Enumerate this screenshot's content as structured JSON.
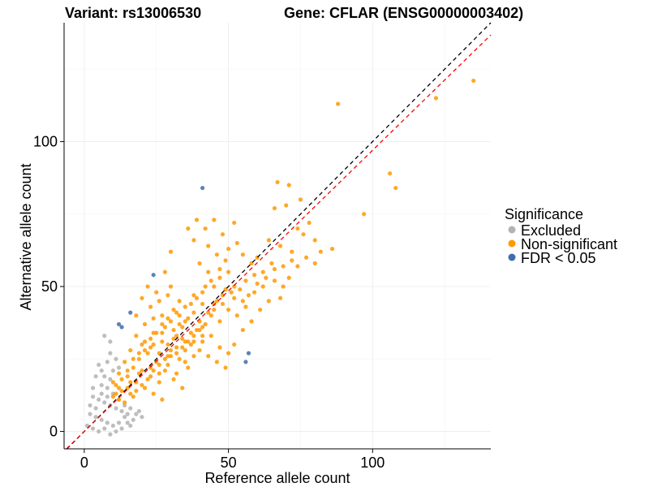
{
  "chart_data": {
    "type": "scatter",
    "title_left": "Variant: rs13006530",
    "title_right": "Gene: CFLAR (ENSG00000003402)",
    "xlabel": "Reference allele count",
    "ylabel": "Alternative allele count",
    "xlim": [
      -7,
      141
    ],
    "ylim": [
      -6,
      141
    ],
    "xticks": [
      0,
      50,
      100
    ],
    "yticks": [
      0,
      50,
      100
    ],
    "grid": true,
    "legend": {
      "title": "Significance",
      "position": "right",
      "entries": [
        {
          "label": "Excluded",
          "color": "#b3b3b3"
        },
        {
          "label": "Non-significant",
          "color": "#ff9900"
        },
        {
          "label": "FDR < 0.05",
          "color": "#3f6fa8"
        }
      ]
    },
    "reference_lines": [
      {
        "name": "identity",
        "slope": 1,
        "intercept": 0,
        "color": "#000000",
        "style": "dashed"
      },
      {
        "name": "fit",
        "slope": 0.97,
        "intercept": 0,
        "color": "#ff0000",
        "style": "dashed"
      }
    ],
    "series": [
      {
        "name": "Excluded",
        "color": "#b3b3b3",
        "points": [
          [
            7,
            33
          ],
          [
            9,
            31
          ],
          [
            5,
            23
          ],
          [
            8,
            24
          ],
          [
            4,
            19
          ],
          [
            7,
            19
          ],
          [
            9,
            18
          ],
          [
            10,
            21
          ],
          [
            12,
            22
          ],
          [
            6,
            16
          ],
          [
            8,
            15
          ],
          [
            3,
            12
          ],
          [
            5,
            11
          ],
          [
            7,
            10
          ],
          [
            9,
            9
          ],
          [
            11,
            8
          ],
          [
            13,
            7
          ],
          [
            2,
            6
          ],
          [
            4,
            5
          ],
          [
            6,
            4
          ],
          [
            8,
            3
          ],
          [
            10,
            2
          ],
          [
            12,
            3
          ],
          [
            14,
            5
          ],
          [
            15,
            6
          ],
          [
            16,
            8
          ],
          [
            14,
            9
          ],
          [
            1,
            2
          ],
          [
            3,
            1
          ],
          [
            5,
            0
          ],
          [
            7,
            1
          ],
          [
            9,
            -1
          ],
          [
            11,
            0
          ],
          [
            13,
            1
          ],
          [
            15,
            3
          ],
          [
            17,
            4
          ],
          [
            18,
            6
          ],
          [
            6,
            13
          ],
          [
            8,
            12
          ],
          [
            10,
            13
          ],
          [
            4,
            8
          ],
          [
            2,
            9
          ],
          [
            12,
            11
          ],
          [
            16,
            2
          ],
          [
            19,
            7
          ],
          [
            20,
            5
          ],
          [
            3,
            15
          ],
          [
            6,
            21
          ],
          [
            9,
            27
          ],
          [
            11,
            25
          ]
        ]
      },
      {
        "name": "Non-significant",
        "color": "#ff9900",
        "points": [
          [
            135,
            121
          ],
          [
            122,
            115
          ],
          [
            88,
            113
          ],
          [
            106,
            89
          ],
          [
            108,
            84
          ],
          [
            97,
            75
          ],
          [
            86,
            63
          ],
          [
            67,
            86
          ],
          [
            71,
            85
          ],
          [
            75,
            80
          ],
          [
            70,
            78
          ],
          [
            66,
            77
          ],
          [
            74,
            70
          ],
          [
            78,
            72
          ],
          [
            80,
            66
          ],
          [
            76,
            68
          ],
          [
            72,
            62
          ],
          [
            68,
            64
          ],
          [
            64,
            66
          ],
          [
            60,
            60
          ],
          [
            58,
            58
          ],
          [
            55,
            61
          ],
          [
            62,
            55
          ],
          [
            66,
            52
          ],
          [
            69,
            50
          ],
          [
            59,
            48
          ],
          [
            55,
            45
          ],
          [
            52,
            50
          ],
          [
            50,
            42
          ],
          [
            48,
            47
          ],
          [
            45,
            44
          ],
          [
            42,
            50
          ],
          [
            40,
            58
          ],
          [
            38,
            66
          ],
          [
            42,
            70
          ],
          [
            45,
            73
          ],
          [
            48,
            68
          ],
          [
            52,
            72
          ],
          [
            50,
            55
          ],
          [
            47,
            38
          ],
          [
            44,
            40
          ],
          [
            41,
            36
          ],
          [
            38,
            41
          ],
          [
            35,
            38
          ],
          [
            33,
            45
          ],
          [
            30,
            50
          ],
          [
            28,
            55
          ],
          [
            25,
            48
          ],
          [
            23,
            43
          ],
          [
            27,
            40
          ],
          [
            31,
            35
          ],
          [
            34,
            32
          ],
          [
            37,
            30
          ],
          [
            40,
            28
          ],
          [
            43,
            26
          ],
          [
            46,
            24
          ],
          [
            49,
            22
          ],
          [
            52,
            30
          ],
          [
            55,
            35
          ],
          [
            58,
            38
          ],
          [
            61,
            42
          ],
          [
            64,
            45
          ],
          [
            36,
            22
          ],
          [
            33,
            25
          ],
          [
            30,
            28
          ],
          [
            27,
            31
          ],
          [
            24,
            34
          ],
          [
            21,
            37
          ],
          [
            18,
            40
          ],
          [
            20,
            30
          ],
          [
            22,
            27
          ],
          [
            25,
            24
          ],
          [
            28,
            21
          ],
          [
            31,
            18
          ],
          [
            34,
            15
          ],
          [
            19,
            25
          ],
          [
            16,
            28
          ],
          [
            14,
            24
          ],
          [
            12,
            20
          ],
          [
            15,
            19
          ],
          [
            18,
            17
          ],
          [
            21,
            15
          ],
          [
            24,
            13
          ],
          [
            27,
            11
          ],
          [
            17,
            12
          ],
          [
            13,
            14
          ],
          [
            11,
            16
          ],
          [
            10,
            12
          ],
          [
            12,
            11
          ],
          [
            14,
            10
          ],
          [
            16,
            13
          ],
          [
            19,
            20
          ],
          [
            23,
            19
          ],
          [
            26,
            17
          ],
          [
            29,
            23
          ],
          [
            32,
            20
          ],
          [
            35,
            24
          ],
          [
            38,
            26
          ],
          [
            41,
            31
          ],
          [
            44,
            33
          ],
          [
            47,
            29
          ],
          [
            50,
            27
          ],
          [
            53,
            40
          ],
          [
            56,
            52
          ],
          [
            59,
            54
          ],
          [
            62,
            50
          ],
          [
            65,
            58
          ],
          [
            68,
            46
          ],
          [
            71,
            53
          ],
          [
            74,
            57
          ],
          [
            77,
            60
          ],
          [
            80,
            58
          ],
          [
            82,
            62
          ],
          [
            26,
            45
          ],
          [
            29,
            47
          ],
          [
            32,
            41
          ],
          [
            35,
            43
          ],
          [
            38,
            47
          ],
          [
            41,
            44
          ],
          [
            44,
            52
          ],
          [
            47,
            56
          ],
          [
            50,
            63
          ],
          [
            53,
            65
          ],
          [
            30,
            62
          ],
          [
            36,
            70
          ],
          [
            39,
            73
          ],
          [
            43,
            64
          ],
          [
            46,
            61
          ],
          [
            49,
            59
          ],
          [
            22,
            50
          ],
          [
            20,
            46
          ],
          [
            24,
            39
          ],
          [
            28,
            36
          ],
          [
            31,
            32
          ],
          [
            34,
            36
          ],
          [
            37,
            34
          ],
          [
            40,
            38
          ],
          [
            43,
            41
          ],
          [
            46,
            45
          ],
          [
            49,
            49
          ],
          [
            52,
            46
          ],
          [
            56,
            43
          ],
          [
            23,
            29
          ],
          [
            26,
            27
          ],
          [
            29,
            26
          ],
          [
            32,
            29
          ],
          [
            35,
            28
          ],
          [
            38,
            31
          ],
          [
            41,
            33
          ],
          [
            17,
            22
          ],
          [
            20,
            21
          ],
          [
            23,
            22
          ],
          [
            26,
            20
          ],
          [
            29,
            30
          ],
          [
            32,
            33
          ],
          [
            35,
            31
          ],
          [
            18,
            33
          ],
          [
            21,
            31
          ],
          [
            24,
            30
          ],
          [
            27,
            34
          ],
          [
            30,
            38
          ],
          [
            33,
            37
          ],
          [
            36,
            39
          ],
          [
            39,
            35
          ],
          [
            42,
            37
          ],
          [
            45,
            42
          ],
          [
            48,
            44
          ],
          [
            51,
            48
          ],
          [
            54,
            49
          ],
          [
            57,
            47
          ],
          [
            60,
            51
          ],
          [
            63,
            53
          ],
          [
            66,
            56
          ],
          [
            69,
            57
          ],
          [
            72,
            59
          ],
          [
            15,
            15
          ],
          [
            16,
            17
          ],
          [
            18,
            14
          ],
          [
            20,
            16
          ],
          [
            22,
            18
          ],
          [
            24,
            21
          ],
          [
            26,
            23
          ],
          [
            28,
            25
          ],
          [
            30,
            26
          ],
          [
            32,
            27
          ],
          [
            34,
            29
          ],
          [
            36,
            31
          ],
          [
            38,
            33
          ],
          [
            40,
            35
          ],
          [
            13,
            18
          ],
          [
            11,
            13
          ],
          [
            10,
            17
          ],
          [
            12,
            15
          ],
          [
            15,
            21
          ],
          [
            17,
            25
          ],
          [
            19,
            27
          ],
          [
            21,
            28
          ],
          [
            23,
            32
          ],
          [
            25,
            34
          ],
          [
            27,
            37
          ],
          [
            29,
            39
          ],
          [
            31,
            42
          ],
          [
            33,
            40
          ],
          [
            37,
            44
          ],
          [
            39,
            46
          ],
          [
            41,
            48
          ],
          [
            43,
            55
          ],
          [
            45,
            50
          ],
          [
            47,
            53
          ]
        ]
      },
      {
        "name": "FDR < 0.05",
        "color": "#3f6fa8",
        "points": [
          [
            41,
            84
          ],
          [
            24,
            54
          ],
          [
            16,
            41
          ],
          [
            12,
            37
          ],
          [
            13,
            36
          ],
          [
            57,
            27
          ],
          [
            56,
            24
          ]
        ]
      }
    ]
  }
}
